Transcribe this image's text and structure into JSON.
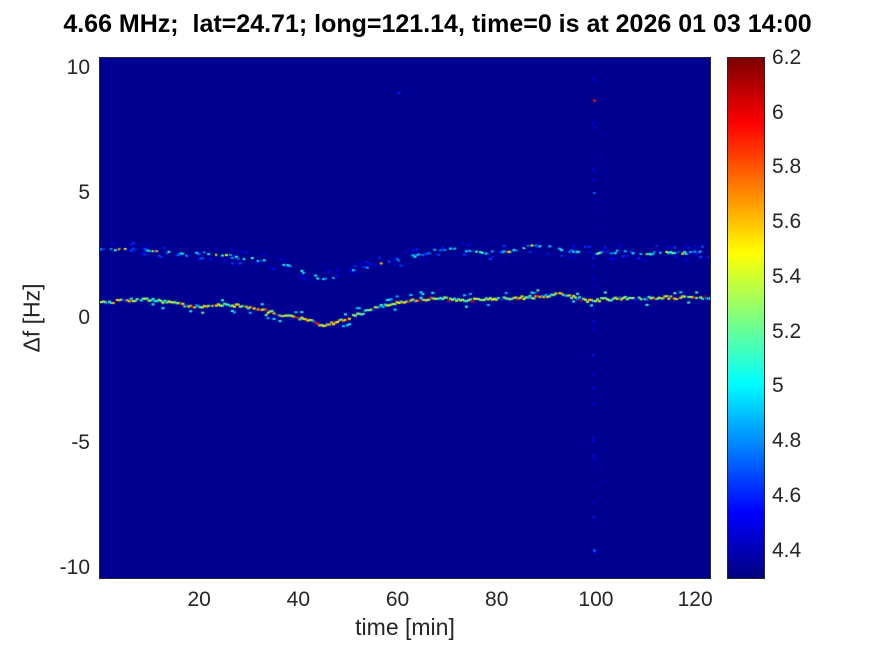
{
  "chart_data": {
    "type": "heatmap",
    "title": "4.66 MHz;  lat=24.71; long=121.14, time=0 is at 2026 01 03 14:00",
    "xlabel": "time [min]",
    "ylabel": "Δf [Hz]",
    "xlim": [
      0,
      123
    ],
    "ylim": [
      -10.4,
      10.4
    ],
    "xticks": [
      20,
      40,
      60,
      80,
      100,
      120
    ],
    "yticks": [
      -10,
      -5,
      0,
      5,
      10
    ],
    "grid": false,
    "background_value": 4.33,
    "colorbar": {
      "position": "right",
      "colormap": "jet",
      "min": 4.3,
      "max": 6.2,
      "ticks": [
        4.4,
        4.6,
        4.8,
        5,
        5.2,
        5.4,
        5.6,
        5.8,
        6,
        6.2
      ]
    },
    "traces": [
      {
        "name": "upper-doppler-trace",
        "points": [
          [
            0,
            2.7
          ],
          [
            5,
            2.72
          ],
          [
            9,
            2.75
          ],
          [
            13,
            2.6
          ],
          [
            17,
            2.52
          ],
          [
            21,
            2.62
          ],
          [
            25,
            2.5
          ],
          [
            29,
            2.38
          ],
          [
            33,
            2.3
          ],
          [
            37,
            2.1
          ],
          [
            41,
            1.8
          ],
          [
            45,
            1.55
          ],
          [
            48,
            1.65
          ],
          [
            52,
            1.95
          ],
          [
            56,
            2.2
          ],
          [
            60,
            2.35
          ],
          [
            64,
            2.5
          ],
          [
            68,
            2.72
          ],
          [
            71,
            2.8
          ],
          [
            75,
            2.68
          ],
          [
            79,
            2.6
          ],
          [
            83,
            2.72
          ],
          [
            86,
            2.9
          ],
          [
            90,
            2.82
          ],
          [
            94,
            2.68
          ],
          [
            98,
            2.6
          ],
          [
            102,
            2.62
          ],
          [
            106,
            2.66
          ],
          [
            110,
            2.58
          ],
          [
            114,
            2.66
          ],
          [
            118,
            2.6
          ],
          [
            123,
            2.65
          ]
        ],
        "vmin": 4.5,
        "vmax": 5.15,
        "hot_p": 0.05,
        "hot_v": 5.5,
        "cold_p": 0.25,
        "density": 0.7,
        "double_p": 0.3
      },
      {
        "name": "lower-doppler-trace",
        "points": [
          [
            0,
            0.6
          ],
          [
            5,
            0.7
          ],
          [
            9,
            0.75
          ],
          [
            13,
            0.65
          ],
          [
            17,
            0.5
          ],
          [
            21,
            0.45
          ],
          [
            25,
            0.55
          ],
          [
            29,
            0.45
          ],
          [
            33,
            0.3
          ],
          [
            37,
            0.1
          ],
          [
            41,
            -0.05
          ],
          [
            45,
            -0.3
          ],
          [
            48,
            -0.15
          ],
          [
            52,
            0.15
          ],
          [
            56,
            0.45
          ],
          [
            60,
            0.6
          ],
          [
            64,
            0.75
          ],
          [
            68,
            0.8
          ],
          [
            72,
            0.7
          ],
          [
            76,
            0.72
          ],
          [
            80,
            0.75
          ],
          [
            84,
            0.8
          ],
          [
            88,
            0.85
          ],
          [
            92,
            0.95
          ],
          [
            95,
            0.85
          ],
          [
            98,
            0.7
          ],
          [
            102,
            0.75
          ],
          [
            106,
            0.8
          ],
          [
            110,
            0.78
          ],
          [
            114,
            0.82
          ],
          [
            118,
            0.8
          ],
          [
            123,
            0.82
          ]
        ],
        "vmin": 5.05,
        "vmax": 5.65,
        "hot_p": 0.07,
        "hot_v": 6.0,
        "cold_p": 0.15,
        "density": 0.95,
        "double_p": 0.15
      }
    ],
    "artifact_column": {
      "t": 99.4,
      "count": 35,
      "vmin": 4.42,
      "vmax": 4.6
    },
    "speckles": [
      {
        "t": 99.4,
        "f": 8.7,
        "v": 5.9
      },
      {
        "t": 99.4,
        "f": 5.0,
        "v": 4.7
      },
      {
        "t": 99.4,
        "f": -9.3,
        "v": 4.75
      },
      {
        "t": 60.0,
        "f": 9.0,
        "v": 4.6
      }
    ]
  }
}
